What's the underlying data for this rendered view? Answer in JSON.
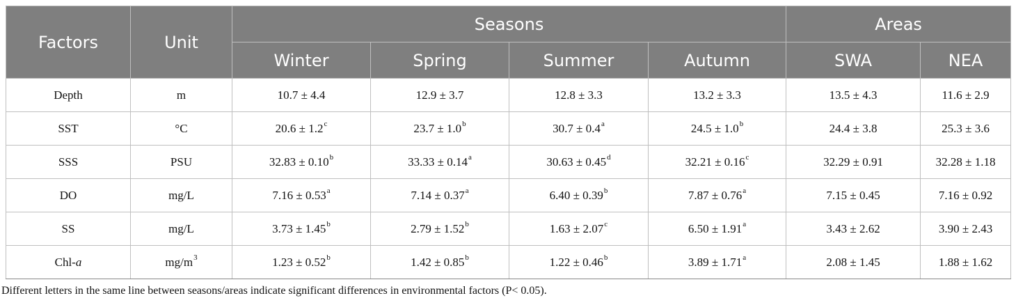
{
  "table": {
    "headers": {
      "factors": "Factors",
      "unit": "Unit",
      "seasons": "Seasons",
      "areas": "Areas",
      "columns": [
        "Winter",
        "Spring",
        "Summer",
        "Autumn",
        "SWA",
        "NEA"
      ]
    },
    "rows": [
      {
        "factor": "Depth",
        "factor_italic": "",
        "unit": "m",
        "unit_sup": "",
        "cells": [
          {
            "v": "10.7 ± 4.4",
            "s": ""
          },
          {
            "v": "12.9 ± 3.7",
            "s": ""
          },
          {
            "v": "12.8 ± 3.3",
            "s": ""
          },
          {
            "v": "13.2 ± 3.3",
            "s": ""
          },
          {
            "v": "13.5 ± 4.3",
            "s": ""
          },
          {
            "v": "11.6 ± 2.9",
            "s": ""
          }
        ]
      },
      {
        "factor": "SST",
        "factor_italic": "",
        "unit": "°C",
        "unit_sup": "",
        "cells": [
          {
            "v": "20.6 ± 1.2",
            "s": "c"
          },
          {
            "v": "23.7 ± 1.0",
            "s": "b"
          },
          {
            "v": "30.7 ± 0.4",
            "s": "a"
          },
          {
            "v": "24.5 ± 1.0",
            "s": "b"
          },
          {
            "v": "24.4 ± 3.8",
            "s": ""
          },
          {
            "v": "25.3 ± 3.6",
            "s": ""
          }
        ]
      },
      {
        "factor": "SSS",
        "factor_italic": "",
        "unit": "PSU",
        "unit_sup": "",
        "cells": [
          {
            "v": "32.83 ± 0.10",
            "s": "b"
          },
          {
            "v": "33.33 ± 0.14",
            "s": "a"
          },
          {
            "v": "30.63 ± 0.45",
            "s": "d"
          },
          {
            "v": "32.21 ± 0.16",
            "s": "c"
          },
          {
            "v": "32.29 ± 0.91",
            "s": ""
          },
          {
            "v": "32.28 ± 1.18",
            "s": ""
          }
        ]
      },
      {
        "factor": "DO",
        "factor_italic": "",
        "unit": "mg/L",
        "unit_sup": "",
        "cells": [
          {
            "v": "7.16 ± 0.53",
            "s": "a"
          },
          {
            "v": "7.14 ± 0.37",
            "s": "a"
          },
          {
            "v": "6.40 ± 0.39",
            "s": "b"
          },
          {
            "v": "7.87 ± 0.76",
            "s": "a"
          },
          {
            "v": "7.15 ± 0.45",
            "s": ""
          },
          {
            "v": "7.16 ± 0.92",
            "s": ""
          }
        ]
      },
      {
        "factor": "SS",
        "factor_italic": "",
        "unit": "mg/L",
        "unit_sup": "",
        "cells": [
          {
            "v": "3.73 ± 1.45",
            "s": "b"
          },
          {
            "v": "2.79 ± 1.52",
            "s": "b"
          },
          {
            "v": "1.63 ± 2.07",
            "s": "c"
          },
          {
            "v": "6.50 ± 1.91",
            "s": "a"
          },
          {
            "v": "3.43 ± 2.62",
            "s": ""
          },
          {
            "v": "3.90 ± 2.43",
            "s": ""
          }
        ]
      },
      {
        "factor": "Chl-",
        "factor_italic": "a",
        "unit": "mg/m",
        "unit_sup": "3",
        "cells": [
          {
            "v": "1.23 ± 0.52",
            "s": "b"
          },
          {
            "v": "1.42 ± 0.85",
            "s": "b"
          },
          {
            "v": "1.22 ± 0.46",
            "s": "b"
          },
          {
            "v": "3.89 ± 1.71",
            "s": "a"
          },
          {
            "v": "2.08 ± 1.45",
            "s": ""
          },
          {
            "v": "1.88 ± 1.62",
            "s": ""
          }
        ]
      }
    ]
  },
  "footnote": "Different letters in the same line between seasons/areas indicate significant differences in environmental factors (P< 0.05).",
  "colors": {
    "header_bg": "#7f7f7f",
    "header_text": "#ffffff",
    "border": "#bfbfbf"
  }
}
